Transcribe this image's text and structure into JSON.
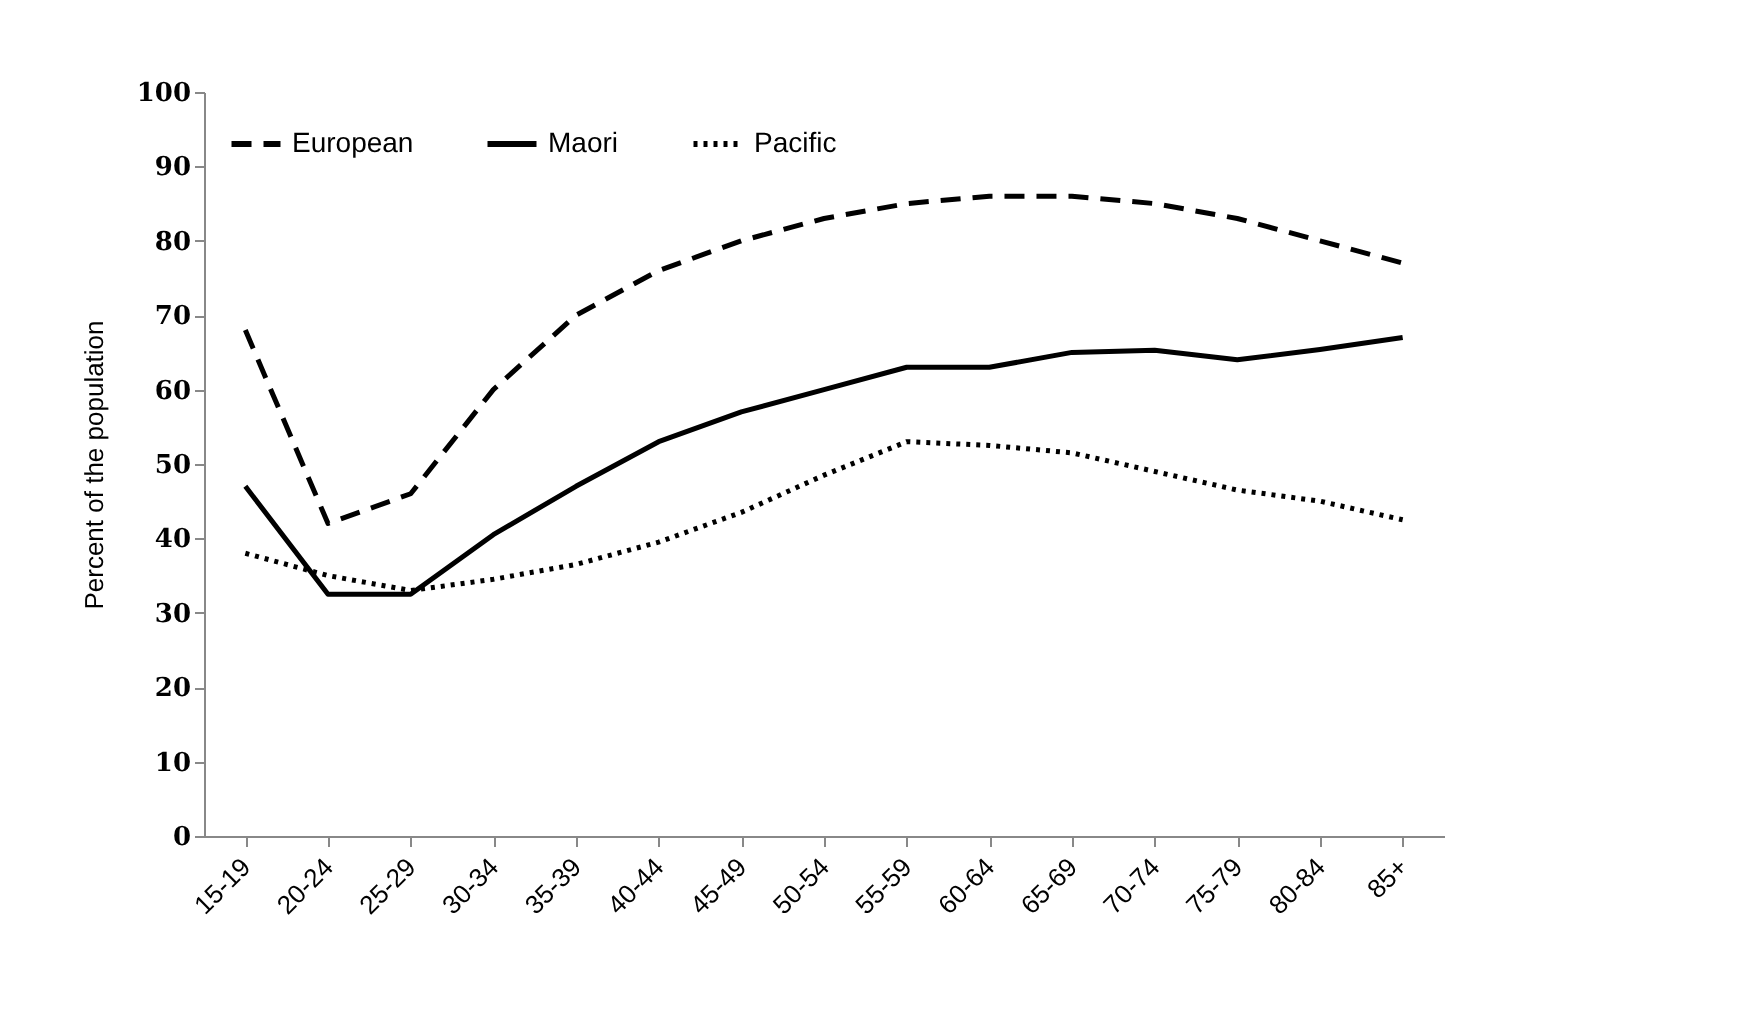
{
  "chart_data": {
    "type": "line",
    "ylabel": "Percent of the population",
    "categories": [
      "15-19",
      "20-24",
      "25-29",
      "30-34",
      "35-39",
      "40-44",
      "45-49",
      "50-54",
      "55-59",
      "60-64",
      "65-69",
      "70-74",
      "75-79",
      "80-84",
      "85+"
    ],
    "series": [
      {
        "name": "European",
        "color": "#000000",
        "line_style": "dashed",
        "values": [
          68,
          42,
          46,
          60,
          70,
          76,
          80,
          83,
          85,
          86,
          86,
          85,
          83,
          80,
          77
        ]
      },
      {
        "name": "Maori",
        "color": "#000000",
        "line_style": "solid",
        "values": [
          47,
          32.5,
          32.5,
          40.5,
          47,
          53,
          57,
          60,
          63,
          63,
          65,
          65.3,
          64,
          65.4,
          67
        ]
      },
      {
        "name": "Pacific",
        "color": "#000000",
        "line_style": "dotted",
        "values": [
          38,
          35,
          33,
          34.5,
          36.5,
          39.5,
          43.5,
          48.5,
          53,
          52.5,
          51.5,
          49,
          46.5,
          45,
          42.5
        ]
      }
    ],
    "ylim": [
      0,
      100
    ],
    "yticks": [
      0,
      10,
      20,
      30,
      40,
      50,
      60,
      70,
      80,
      90,
      100
    ],
    "grid": false,
    "legend": "top left",
    "marker": "none"
  }
}
